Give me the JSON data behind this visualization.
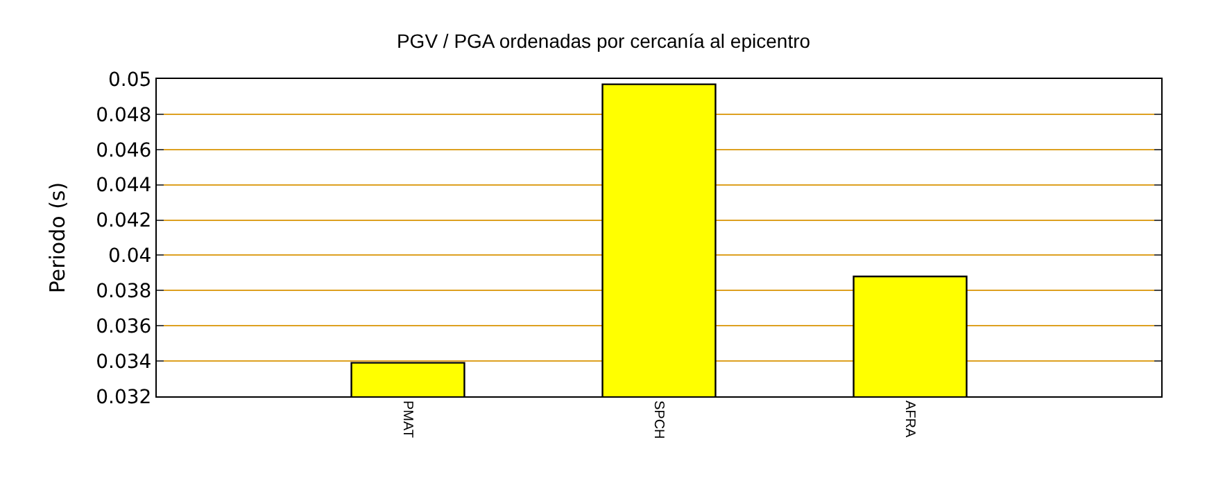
{
  "chart_data": {
    "type": "bar",
    "title": "PGV / PGA ordenadas por cercanía al epicentro",
    "ylabel": "Periodo (s)",
    "categories": [
      "PMAT",
      "SPCH",
      "AFRA"
    ],
    "series": [
      {
        "color": "#ffff00",
        "values": [
          0.0339,
          0.0497,
          0.0388
        ]
      }
    ],
    "ylim": [
      0.032,
      0.05
    ],
    "yticks": [
      0.032,
      0.034,
      0.036,
      0.038,
      0.04,
      0.042,
      0.044,
      0.046,
      0.048,
      0.05
    ],
    "grid": "y"
  }
}
